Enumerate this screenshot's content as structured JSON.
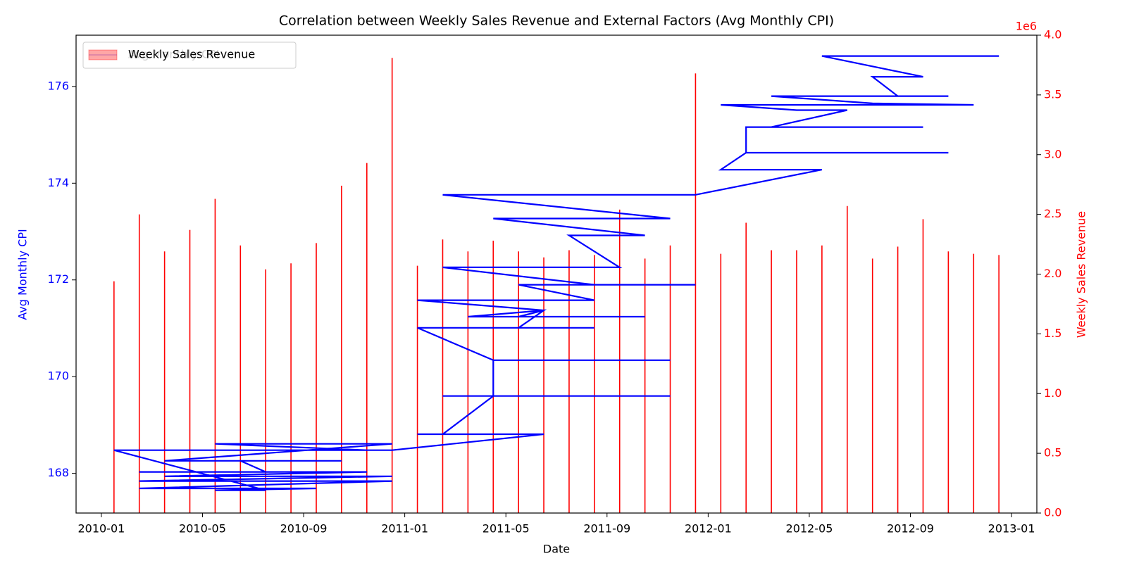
{
  "chart_data": {
    "type": "combo",
    "title": "Correlation between Weekly Sales Revenue and External Factors (Avg Monthly CPI)",
    "xlabel": "Date",
    "ylabel": "Avg Monthly CPI",
    "y2label": "Weekly Sales Revenue",
    "y2offset": "1e6",
    "xlim": [
      "2009-12",
      "2013-02"
    ],
    "xticks": [
      "2010-01",
      "2010-05",
      "2010-09",
      "2011-01",
      "2011-05",
      "2011-09",
      "2012-01",
      "2012-05",
      "2012-09",
      "2013-01"
    ],
    "ylim": [
      167.18,
      177.06
    ],
    "yticks": [
      168,
      170,
      172,
      174,
      176
    ],
    "ycolor": "#0000ff",
    "y2lim": [
      0,
      4
    ],
    "y2ticks": [
      {
        "value": 0,
        "label": "0.0"
      },
      0.5,
      {
        "value": 1,
        "label": "1.0"
      },
      1.5,
      {
        "value": 2,
        "label": "2.0"
      },
      2.5,
      {
        "value": 3,
        "label": "3.0"
      },
      3.5,
      {
        "value": 4,
        "label": "4.0"
      }
    ],
    "y2color": "#ff0000",
    "legend": "upper left",
    "series": [
      {
        "name": "Weekly Sales Revenue",
        "type": "bar",
        "axis": "y2",
        "color": "#ff0000",
        "x": [
          "2010-01",
          "2010-02",
          "2010-03",
          "2010-04",
          "2010-05",
          "2010-06",
          "2010-07",
          "2010-08",
          "2010-09",
          "2010-10",
          "2010-11",
          "2010-12",
          "2011-01",
          "2011-02",
          "2011-03",
          "2011-04",
          "2011-05",
          "2011-06",
          "2011-07",
          "2011-08",
          "2011-09",
          "2011-10",
          "2011-11",
          "2011-12",
          "2012-01",
          "2012-02",
          "2012-03",
          "2012-04",
          "2012-05",
          "2012-06",
          "2012-07",
          "2012-08",
          "2012-09",
          "2012-10",
          "2012-11",
          "2012-12"
        ],
        "values": [
          1.94,
          2.5,
          2.19,
          2.37,
          2.63,
          2.24,
          2.04,
          2.09,
          2.26,
          2.74,
          2.93,
          3.81,
          2.07,
          2.29,
          2.19,
          2.28,
          2.19,
          2.14,
          2.2,
          2.16,
          2.54,
          2.13,
          2.24,
          3.68,
          2.17,
          2.43,
          2.2,
          2.2,
          2.24,
          2.57,
          2.13,
          2.23,
          2.46,
          2.19,
          2.17,
          2.16
        ]
      },
      {
        "name": "Avg Monthly CPI",
        "type": "line",
        "color": "#0000ff",
        "x": [
          "2010-01",
          "2010-11",
          "2010-05",
          "2010-12",
          "2010-03",
          "2010-10",
          "2010-06",
          "2010-07",
          "2010-02",
          "2010-11",
          "2010-03",
          "2010-12",
          "2010-02",
          "2010-12",
          "2010-02",
          "2010-09",
          "2010-05",
          "2010-07",
          "2010-01",
          "2010-12",
          "2011-06",
          "2011-01",
          "2011-02",
          "2011-04",
          "2011-02",
          "2011-11",
          "2011-04",
          "2011-04",
          "2011-11",
          "2011-04",
          "2011-01",
          "2011-08",
          "2011-05",
          "2011-06",
          "2011-03",
          "2011-10",
          "2011-05",
          "2011-06",
          "2011-01",
          "2011-08",
          "2011-05",
          "2011-12",
          "2011-08",
          "2011-02",
          "2011-09",
          "2011-07",
          "2011-10",
          "2011-04",
          "2011-11",
          "2011-02",
          "2011-12",
          "2012-05",
          "2012-01",
          "2012-02",
          "2012-10",
          "2012-02",
          "2012-02",
          "2012-09",
          "2012-03",
          "2012-06",
          "2012-04",
          "2012-01",
          "2012-11",
          "2012-07",
          "2012-03",
          "2012-10",
          "2012-08",
          "2012-07",
          "2012-09",
          "2012-05",
          "2012-12"
        ],
        "values": [
          168.48,
          168.48,
          168.61,
          168.61,
          168.26,
          168.26,
          168.26,
          168.03,
          168.03,
          168.03,
          167.94,
          167.94,
          167.84,
          167.84,
          167.69,
          167.69,
          167.65,
          167.65,
          168.48,
          168.48,
          168.81,
          168.81,
          168.81,
          169.6,
          169.6,
          169.6,
          169.6,
          170.34,
          170.34,
          170.34,
          171.01,
          171.01,
          171.01,
          171.37,
          171.24,
          171.24,
          171.24,
          171.37,
          171.58,
          171.58,
          171.9,
          171.9,
          171.9,
          172.26,
          172.26,
          172.92,
          172.92,
          173.27,
          173.27,
          173.76,
          173.76,
          174.28,
          174.28,
          174.63,
          174.63,
          174.63,
          175.16,
          175.16,
          175.16,
          175.51,
          175.51,
          175.62,
          175.62,
          175.65,
          175.8,
          175.8,
          175.8,
          176.2,
          176.2,
          176.63,
          176.63
        ]
      }
    ]
  }
}
